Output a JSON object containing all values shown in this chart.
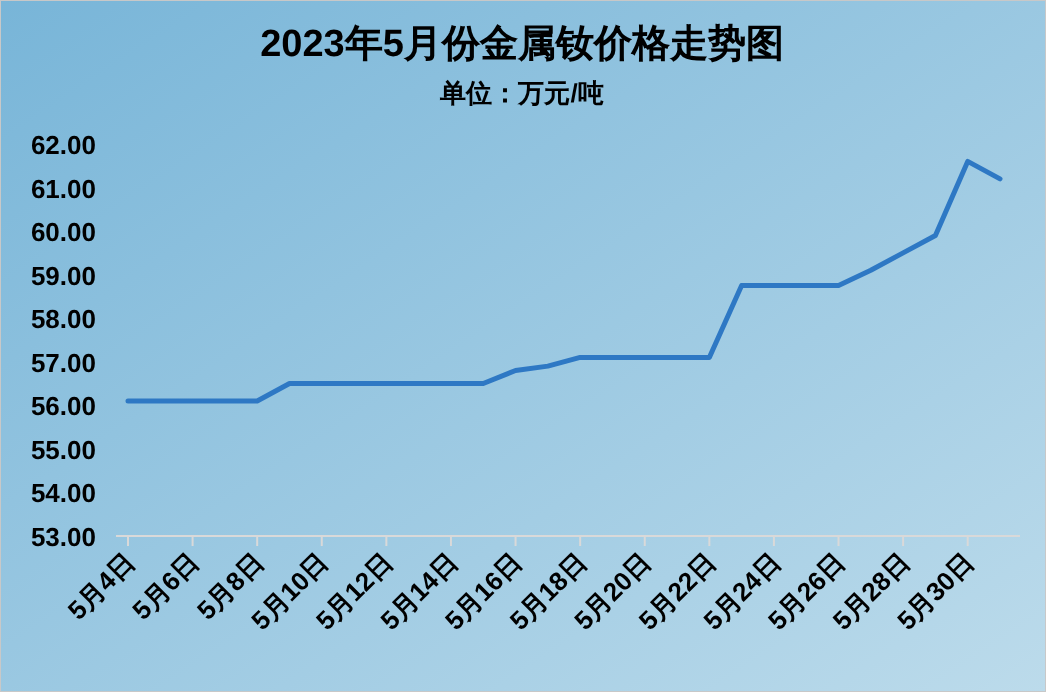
{
  "chart_data": {
    "type": "line",
    "title": "2023年5月份金属钕价格走势图",
    "subtitle": "单位：万元/吨",
    "categories": [
      "5月4日",
      null,
      "5月6日",
      null,
      "5月8日",
      null,
      "5月10日",
      null,
      "5月12日",
      null,
      "5月14日",
      null,
      "5月16日",
      null,
      "5月18日",
      null,
      "5月20日",
      null,
      "5月22日",
      null,
      "5月24日",
      null,
      "5月26日",
      null,
      "5月28日",
      null,
      "5月30日",
      null
    ],
    "values": [
      56.1,
      56.1,
      56.1,
      56.1,
      56.1,
      56.5,
      56.5,
      56.5,
      56.5,
      56.5,
      56.5,
      56.5,
      56.8,
      56.9,
      57.1,
      57.1,
      57.1,
      57.1,
      57.1,
      58.75,
      58.75,
      58.75,
      58.75,
      59.1,
      59.5,
      59.9,
      61.6,
      61.2
    ],
    "color": "#2e78c4",
    "ylim": [
      53,
      62
    ],
    "yticks": [
      {
        "value": 53,
        "label": "53.00"
      },
      {
        "value": 54,
        "label": "54.00"
      },
      {
        "value": 55,
        "label": "55.00"
      },
      {
        "value": 56,
        "label": "56.00"
      },
      {
        "value": 57,
        "label": "57.00"
      },
      {
        "value": 58,
        "label": "58.00"
      },
      {
        "value": 59,
        "label": "59.00"
      },
      {
        "value": 60,
        "label": "60.00"
      },
      {
        "value": 61,
        "label": "61.00"
      },
      {
        "value": 62,
        "label": "62.00"
      }
    ],
    "grid": false,
    "marker": "none",
    "line_style": "solid"
  }
}
